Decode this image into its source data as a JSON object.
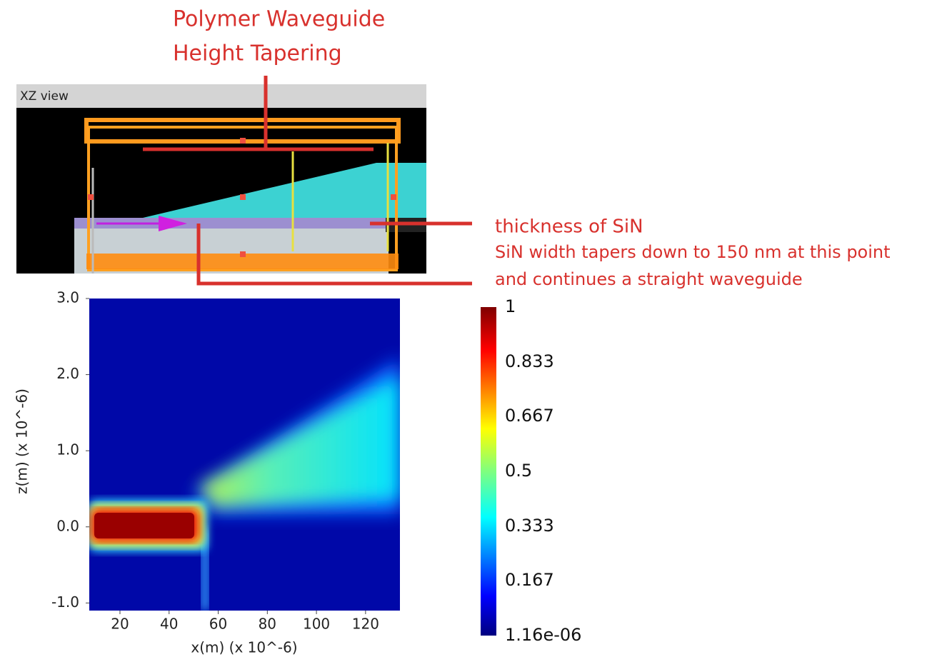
{
  "chart_data": {
    "type": "heatmap",
    "xlabel": "x(m) (x 10^-6)",
    "ylabel": "z(m) (x 10^-6)",
    "xlim": [
      7.5,
      134
    ],
    "ylim": [
      -1.1,
      3.0
    ],
    "xticks": [
      20,
      40,
      60,
      80,
      100,
      120
    ],
    "yticks": [
      {
        "value": -1,
        "label": "-1.0"
      },
      {
        "value": 0,
        "label": "0.0"
      },
      {
        "value": 1,
        "label": "1.0"
      },
      {
        "value": 2,
        "label": "2.0"
      },
      {
        "value": 3,
        "label": "3.0"
      }
    ],
    "colorbar": {
      "lim": [
        0,
        1
      ],
      "ticks": [
        {
          "value": 1.16e-06,
          "label": "1.16e-06"
        },
        0.167,
        0.333,
        0.5,
        0.667,
        0.833,
        1
      ]
    }
  },
  "xz_view": {
    "title": "XZ view"
  },
  "annotations": {
    "title_line1": "Polymer Waveguide",
    "title_line2": "Height Tapering",
    "sin_thickness": "thickness of SiN",
    "taper_line1": "SiN width tapers down to 150 nm at this point",
    "taper_line2": "and continues a straight waveguide"
  }
}
